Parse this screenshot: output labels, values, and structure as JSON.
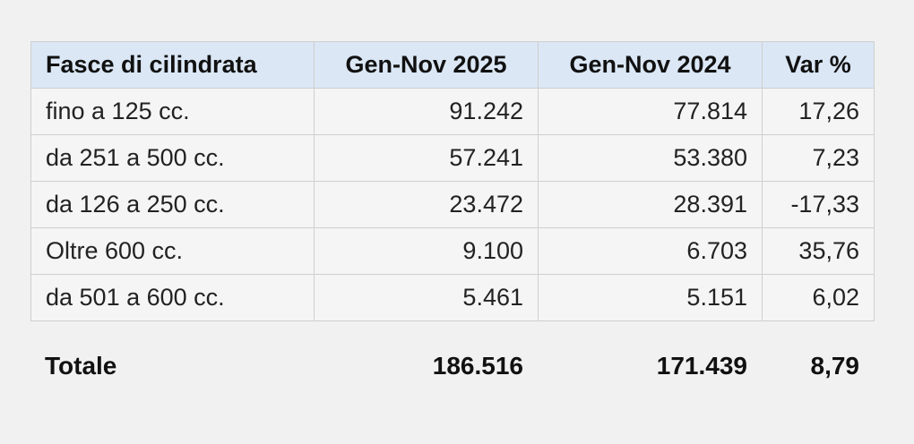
{
  "table": {
    "header": [
      "Fasce di cilindrata",
      "Gen-Nov 2025",
      "Gen-Nov 2024",
      "Var %"
    ],
    "rows": [
      [
        "fino a 125 cc.",
        "91.242",
        "77.814",
        "17,26"
      ],
      [
        "da 251 a 500 cc.",
        "57.241",
        "53.380",
        "7,23"
      ],
      [
        "da 126 a 250 cc.",
        "23.472",
        "28.391",
        "-17,33"
      ],
      [
        "Oltre 600 cc.",
        "9.100",
        "6.703",
        "35,76"
      ],
      [
        "da 501 a 600 cc.",
        "5.461",
        "5.151",
        "6,02"
      ]
    ],
    "total": [
      "Totale",
      "186.516",
      "171.439",
      "8,79"
    ]
  }
}
